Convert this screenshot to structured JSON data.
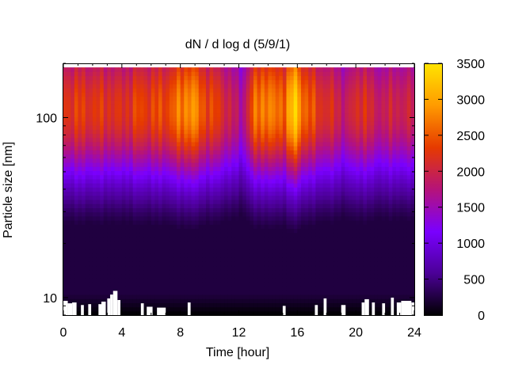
{
  "chart_data": {
    "type": "heatmap",
    "title": "dN / d log d (5/9/1)",
    "xlabel": "Time [hour]",
    "ylabel": "Particle size [nm]",
    "xlim": [
      0,
      24
    ],
    "x_ticks": [
      "0",
      "4",
      "8",
      "12",
      "16",
      "20",
      "24"
    ],
    "y_scale": "log",
    "ylim": [
      8,
      200
    ],
    "y_ticks": [
      "10",
      "100"
    ],
    "colorbar": {
      "range": [
        0,
        3500
      ],
      "ticks": [
        "0",
        "500",
        "1000",
        "1500",
        "2000",
        "2500",
        "3000",
        "3500"
      ],
      "colors": [
        "#000000",
        "#4b0096",
        "#7a00ff",
        "#b5137a",
        "#e63a00",
        "#ff9a00",
        "#ffe400"
      ]
    },
    "size_mode_nm": 110,
    "intensity_by_time": {
      "x": [
        0,
        1,
        2,
        3,
        4,
        5,
        6,
        7,
        8,
        8.7,
        9.5,
        10.5,
        11.5,
        12.2,
        13,
        13.8,
        14.5,
        15.2,
        15.8,
        16.5,
        17.5,
        18.5,
        19.3,
        20.5,
        21.3,
        22,
        23,
        24
      ],
      "peak_value": [
        2250,
        2300,
        2250,
        2250,
        2150,
        2350,
        2350,
        2400,
        2700,
        2950,
        2500,
        2300,
        1950,
        1600,
        2550,
        2850,
        2600,
        2700,
        3350,
        2600,
        2250,
        2100,
        1850,
        2300,
        1900,
        1950,
        2000,
        1950
      ]
    },
    "gaps": "white spikes at the bottom edge (sizes below ~10 nm) where no data is shown"
  }
}
